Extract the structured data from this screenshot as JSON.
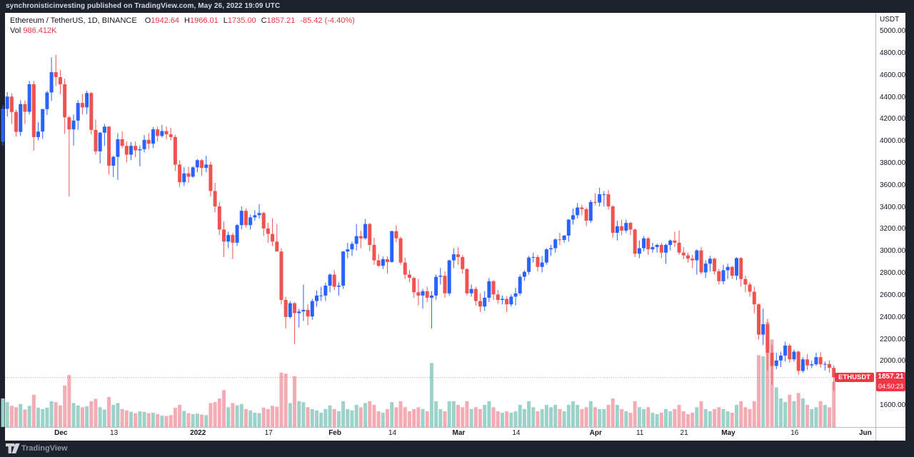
{
  "top_bar": {
    "text": "synchronisticinvesting published on TradingView.com, May 26, 2022 19:09 UTC"
  },
  "legend": {
    "symbol_title": "Ethereum / TetherUS, 1D, BINANCE",
    "open_label": "O",
    "open": "1942.64",
    "high_label": "H",
    "high": "1966.01",
    "low_label": "L",
    "low": "1735.00",
    "close_label": "C",
    "close": "1857.21",
    "change": "-85.42 (-4.40%)",
    "vol_label": "Vol",
    "vol_value": "986.412K"
  },
  "price_axis": {
    "currency": "USDT",
    "ticks": [
      "5000.00",
      "4800.00",
      "4600.00",
      "4400.00",
      "4200.00",
      "4000.00",
      "3800.00",
      "3600.00",
      "3400.00",
      "3200.00",
      "3000.00",
      "2800.00",
      "2600.00",
      "2400.00",
      "2200.00",
      "2000.00",
      "1600.00"
    ]
  },
  "time_axis": {
    "labels": [
      {
        "text": "Dec",
        "date": "2021-12-01",
        "bold": true
      },
      {
        "text": "13",
        "date": "2021-12-13",
        "bold": false
      },
      {
        "text": "2022",
        "date": "2022-01-01",
        "bold": true
      },
      {
        "text": "17",
        "date": "2022-01-17",
        "bold": false
      },
      {
        "text": "Feb",
        "date": "2022-02-01",
        "bold": true
      },
      {
        "text": "14",
        "date": "2022-02-14",
        "bold": false
      },
      {
        "text": "Mar",
        "date": "2022-03-01",
        "bold": true
      },
      {
        "text": "14",
        "date": "2022-03-14",
        "bold": false
      },
      {
        "text": "Apr",
        "date": "2022-04-01",
        "bold": true
      },
      {
        "text": "11",
        "date": "2022-04-11",
        "bold": false
      },
      {
        "text": "21",
        "date": "2022-04-21",
        "bold": false
      },
      {
        "text": "May",
        "date": "2022-05-01",
        "bold": true
      },
      {
        "text": "16",
        "date": "2022-05-16",
        "bold": false
      },
      {
        "text": "Jun",
        "date": "2022-06-01",
        "bold": true
      }
    ]
  },
  "price_label": {
    "symbol": "ETHUSDT",
    "price": "1857.21",
    "countdown": "04:50:23"
  },
  "footer": {
    "brand": "TradingView"
  },
  "colors": {
    "up": "#2962ff",
    "down": "#ef5350",
    "vol_up": "#9cd2ca",
    "vol_down": "#f4acb4",
    "accent_red": "#f23645",
    "frame": "#1e222d",
    "axis_line": "#b7bac1",
    "text": "#131722"
  },
  "chart_data": {
    "type": "candlestick",
    "symbol": "ETHUSDT",
    "exchange": "BINANCE",
    "interval": "1D",
    "start_date": "2021-11-19",
    "price_axis_range": [
      1600,
      5000
    ],
    "last_price": 1857.21,
    "columns": [
      "open",
      "high",
      "low",
      "close",
      "volume_K"
    ],
    "candles": [
      [
        3997,
        4330,
        3959,
        4296,
        620
      ],
      [
        4296,
        4448,
        4226,
        4408,
        540
      ],
      [
        4408,
        4436,
        4159,
        4268,
        460
      ],
      [
        4268,
        4288,
        4046,
        4087,
        430
      ],
      [
        4087,
        4375,
        4051,
        4340,
        500
      ],
      [
        4340,
        4374,
        4158,
        4270,
        380
      ],
      [
        4270,
        4550,
        4245,
        4520,
        460
      ],
      [
        4520,
        4550,
        3917,
        4040,
        700
      ],
      [
        4040,
        4175,
        4010,
        4090,
        420
      ],
      [
        4090,
        4297,
        4023,
        4294,
        390
      ],
      [
        4294,
        4460,
        4242,
        4445,
        420
      ],
      [
        4445,
        4764,
        4370,
        4630,
        560
      ],
      [
        4630,
        4787,
        4504,
        4585,
        540
      ],
      [
        4585,
        4650,
        4430,
        4520,
        470
      ],
      [
        4520,
        4570,
        4070,
        4220,
        900
      ],
      [
        4220,
        4232,
        3500,
        4110,
        1130
      ],
      [
        4110,
        4245,
        3963,
        4190,
        520
      ],
      [
        4190,
        4375,
        4105,
        4350,
        470
      ],
      [
        4350,
        4430,
        4245,
        4310,
        430
      ],
      [
        4310,
        4460,
        4250,
        4440,
        450
      ],
      [
        4440,
        4450,
        4065,
        4105,
        560
      ],
      [
        4105,
        4200,
        3880,
        3910,
        610
      ],
      [
        3910,
        4085,
        3800,
        4080,
        430
      ],
      [
        4080,
        4160,
        3960,
        4135,
        380
      ],
      [
        4135,
        4140,
        3700,
        3780,
        650
      ],
      [
        3780,
        3870,
        3675,
        3860,
        480
      ],
      [
        3860,
        4075,
        3650,
        4020,
        520
      ],
      [
        4020,
        4090,
        3940,
        3960,
        390
      ],
      [
        3960,
        4000,
        3810,
        3880,
        360
      ],
      [
        3880,
        3995,
        3830,
        3960,
        330
      ],
      [
        3960,
        4000,
        3856,
        3920,
        300
      ],
      [
        3920,
        3965,
        3775,
        3930,
        340
      ],
      [
        3930,
        4060,
        3900,
        4015,
        330
      ],
      [
        4015,
        4075,
        3930,
        3980,
        300
      ],
      [
        3980,
        4130,
        3940,
        4110,
        310
      ],
      [
        4110,
        4135,
        4000,
        4050,
        280
      ],
      [
        4050,
        4150,
        4035,
        4095,
        250
      ],
      [
        4095,
        4135,
        4020,
        4065,
        240
      ],
      [
        4065,
        4125,
        4010,
        4040,
        260
      ],
      [
        4040,
        4060,
        3735,
        3790,
        420
      ],
      [
        3790,
        3830,
        3590,
        3630,
        480
      ],
      [
        3630,
        3765,
        3595,
        3710,
        350
      ],
      [
        3710,
        3770,
        3625,
        3680,
        300
      ],
      [
        3680,
        3775,
        3670,
        3765,
        280
      ],
      [
        3765,
        3840,
        3720,
        3830,
        290
      ],
      [
        3830,
        3840,
        3690,
        3760,
        270
      ],
      [
        3760,
        3870,
        3720,
        3790,
        260
      ],
      [
        3790,
        3815,
        3500,
        3550,
        520
      ],
      [
        3550,
        3625,
        3355,
        3410,
        540
      ],
      [
        3410,
        3450,
        3150,
        3200,
        620
      ],
      [
        3200,
        3270,
        2950,
        3090,
        800
      ],
      [
        3090,
        3180,
        3030,
        3150,
        430
      ],
      [
        3150,
        3170,
        2930,
        3080,
        520
      ],
      [
        3080,
        3250,
        3050,
        3240,
        470
      ],
      [
        3240,
        3410,
        3200,
        3370,
        500
      ],
      [
        3370,
        3390,
        3220,
        3240,
        390
      ],
      [
        3240,
        3335,
        3200,
        3310,
        360
      ],
      [
        3310,
        3375,
        3280,
        3330,
        310
      ],
      [
        3330,
        3430,
        3300,
        3350,
        300
      ],
      [
        3350,
        3360,
        3140,
        3210,
        420
      ],
      [
        3210,
        3260,
        3080,
        3160,
        390
      ],
      [
        3160,
        3300,
        3050,
        3090,
        460
      ],
      [
        3090,
        3250,
        3000,
        3000,
        440
      ],
      [
        3000,
        3030,
        2520,
        2560,
        1180
      ],
      [
        2560,
        2590,
        2300,
        2405,
        1160
      ],
      [
        2405,
        2550,
        2390,
        2530,
        520
      ],
      [
        2530,
        2540,
        2160,
        2440,
        1100
      ],
      [
        2440,
        2480,
        2310,
        2455,
        560
      ],
      [
        2455,
        2700,
        2370,
        2470,
        540
      ],
      [
        2470,
        2520,
        2330,
        2410,
        430
      ],
      [
        2410,
        2570,
        2380,
        2550,
        390
      ],
      [
        2550,
        2645,
        2500,
        2600,
        360
      ],
      [
        2600,
        2680,
        2550,
        2600,
        310
      ],
      [
        2600,
        2715,
        2550,
        2690,
        390
      ],
      [
        2690,
        2800,
        2630,
        2790,
        470
      ],
      [
        2790,
        2830,
        2650,
        2680,
        390
      ],
      [
        2680,
        2720,
        2600,
        2690,
        340
      ],
      [
        2690,
        3005,
        2660,
        3000,
        560
      ],
      [
        3000,
        3080,
        2940,
        3020,
        390
      ],
      [
        3020,
        3090,
        2960,
        3070,
        360
      ],
      [
        3070,
        3250,
        3010,
        3140,
        480
      ],
      [
        3140,
        3190,
        3030,
        3120,
        430
      ],
      [
        3120,
        3295,
        3110,
        3250,
        520
      ],
      [
        3250,
        3260,
        3000,
        3060,
        560
      ],
      [
        3060,
        3125,
        2880,
        2920,
        480
      ],
      [
        2920,
        2975,
        2860,
        2870,
        340
      ],
      [
        2870,
        2955,
        2840,
        2930,
        310
      ],
      [
        2930,
        2955,
        2800,
        2905,
        390
      ],
      [
        2905,
        3190,
        2900,
        3185,
        540
      ],
      [
        3185,
        3240,
        3085,
        3120,
        430
      ],
      [
        3120,
        3135,
        2880,
        2900,
        560
      ],
      [
        2900,
        2945,
        2750,
        2790,
        430
      ],
      [
        2790,
        2830,
        2720,
        2760,
        340
      ],
      [
        2760,
        2770,
        2580,
        2630,
        390
      ],
      [
        2630,
        2750,
        2510,
        2600,
        430
      ],
      [
        2600,
        2660,
        2480,
        2640,
        390
      ],
      [
        2640,
        2680,
        2540,
        2580,
        340
      ],
      [
        2580,
        2640,
        2300,
        2600,
        1390
      ],
      [
        2600,
        2790,
        2560,
        2770,
        560
      ],
      [
        2770,
        2850,
        2700,
        2780,
        390
      ],
      [
        2780,
        2820,
        2580,
        2620,
        340
      ],
      [
        2620,
        2925,
        2600,
        2920,
        560
      ],
      [
        2920,
        3030,
        2850,
        2975,
        560
      ],
      [
        2975,
        3040,
        2880,
        2950,
        480
      ],
      [
        2950,
        2970,
        2800,
        2840,
        430
      ],
      [
        2840,
        2850,
        2600,
        2620,
        560
      ],
      [
        2620,
        2700,
        2590,
        2660,
        390
      ],
      [
        2660,
        2680,
        2510,
        2550,
        430
      ],
      [
        2550,
        2620,
        2450,
        2500,
        390
      ],
      [
        2500,
        2640,
        2460,
        2580,
        480
      ],
      [
        2580,
        2760,
        2540,
        2730,
        560
      ],
      [
        2730,
        2740,
        2560,
        2610,
        430
      ],
      [
        2610,
        2650,
        2525,
        2560,
        340
      ],
      [
        2560,
        2600,
        2520,
        2570,
        310
      ],
      [
        2570,
        2595,
        2450,
        2520,
        340
      ],
      [
        2520,
        2610,
        2500,
        2590,
        310
      ],
      [
        2590,
        2670,
        2510,
        2620,
        340
      ],
      [
        2620,
        2790,
        2600,
        2770,
        480
      ],
      [
        2770,
        2830,
        2735,
        2815,
        390
      ],
      [
        2815,
        2960,
        2790,
        2945,
        560
      ],
      [
        2945,
        2990,
        2900,
        2950,
        430
      ],
      [
        2950,
        2970,
        2820,
        2860,
        340
      ],
      [
        2860,
        2960,
        2810,
        2900,
        390
      ],
      [
        2900,
        3030,
        2880,
        3020,
        480
      ],
      [
        3020,
        3060,
        2960,
        3030,
        430
      ],
      [
        3030,
        3120,
        2990,
        3110,
        480
      ],
      [
        3110,
        3170,
        3060,
        3105,
        390
      ],
      [
        3105,
        3150,
        3080,
        3145,
        340
      ],
      [
        3145,
        3295,
        3090,
        3290,
        480
      ],
      [
        3290,
        3390,
        3245,
        3330,
        560
      ],
      [
        3330,
        3440,
        3300,
        3400,
        480
      ],
      [
        3400,
        3425,
        3330,
        3385,
        390
      ],
      [
        3385,
        3400,
        3230,
        3280,
        430
      ],
      [
        3280,
        3470,
        3260,
        3450,
        560
      ],
      [
        3450,
        3530,
        3420,
        3445,
        430
      ],
      [
        3445,
        3580,
        3410,
        3520,
        390
      ],
      [
        3520,
        3550,
        3410,
        3520,
        390
      ],
      [
        3520,
        3560,
        3380,
        3410,
        480
      ],
      [
        3410,
        3420,
        3125,
        3170,
        620
      ],
      [
        3170,
        3280,
        3100,
        3230,
        480
      ],
      [
        3230,
        3290,
        3150,
        3190,
        390
      ],
      [
        3190,
        3290,
        3170,
        3260,
        340
      ],
      [
        3260,
        3270,
        3150,
        3200,
        310
      ],
      [
        3200,
        3210,
        2950,
        2980,
        560
      ],
      [
        2980,
        3100,
        2940,
        3030,
        430
      ],
      [
        3030,
        3140,
        3000,
        3120,
        390
      ],
      [
        3120,
        3130,
        2970,
        3020,
        430
      ],
      [
        3020,
        3080,
        2990,
        3040,
        310
      ],
      [
        3040,
        3070,
        2990,
        3060,
        280
      ],
      [
        3060,
        3080,
        2940,
        2990,
        310
      ],
      [
        2990,
        3070,
        2890,
        3060,
        390
      ],
      [
        3060,
        3110,
        3010,
        3100,
        340
      ],
      [
        3100,
        3180,
        3040,
        3080,
        390
      ],
      [
        3080,
        3190,
        2970,
        2990,
        480
      ],
      [
        2990,
        3040,
        2930,
        2965,
        340
      ],
      [
        2965,
        2990,
        2900,
        2935,
        280
      ],
      [
        2935,
        2970,
        2850,
        2920,
        310
      ],
      [
        2920,
        3020,
        2790,
        3010,
        430
      ],
      [
        3010,
        3040,
        2790,
        2810,
        560
      ],
      [
        2810,
        2920,
        2760,
        2890,
        390
      ],
      [
        2890,
        2960,
        2820,
        2935,
        340
      ],
      [
        2935,
        2945,
        2790,
        2820,
        390
      ],
      [
        2820,
        2840,
        2700,
        2730,
        430
      ],
      [
        2730,
        2880,
        2700,
        2830,
        390
      ],
      [
        2830,
        2890,
        2750,
        2860,
        340
      ],
      [
        2860,
        2870,
        2750,
        2780,
        310
      ],
      [
        2780,
        2950,
        2740,
        2940,
        480
      ],
      [
        2940,
        2950,
        2680,
        2750,
        560
      ],
      [
        2750,
        2780,
        2630,
        2700,
        430
      ],
      [
        2700,
        2720,
        2590,
        2635,
        390
      ],
      [
        2635,
        2680,
        2440,
        2520,
        560
      ],
      [
        2520,
        2530,
        2200,
        2245,
        1560
      ],
      [
        2245,
        2480,
        2150,
        2340,
        1535
      ],
      [
        2340,
        2390,
        1920,
        2080,
        2280
      ],
      [
        2080,
        2150,
        1789,
        1960,
        1900
      ],
      [
        1960,
        2080,
        1930,
        2010,
        860
      ],
      [
        2010,
        2090,
        1950,
        2055,
        620
      ],
      [
        2055,
        2180,
        2000,
        2145,
        540
      ],
      [
        2145,
        2160,
        1990,
        2020,
        700
      ],
      [
        2020,
        2110,
        2000,
        2090,
        560
      ],
      [
        2090,
        2100,
        1880,
        1915,
        740
      ],
      [
        1915,
        2040,
        1900,
        2020,
        620
      ],
      [
        2020,
        2070,
        1925,
        1965,
        480
      ],
      [
        1965,
        2010,
        1940,
        1975,
        390
      ],
      [
        1975,
        2080,
        1960,
        2040,
        430
      ],
      [
        2040,
        2085,
        1945,
        1975,
        560
      ],
      [
        1975,
        2000,
        1920,
        1978,
        480
      ],
      [
        1978,
        2010,
        1900,
        1943,
        430
      ],
      [
        1942.64,
        1966.01,
        1735,
        1857.21,
        986
      ]
    ]
  }
}
